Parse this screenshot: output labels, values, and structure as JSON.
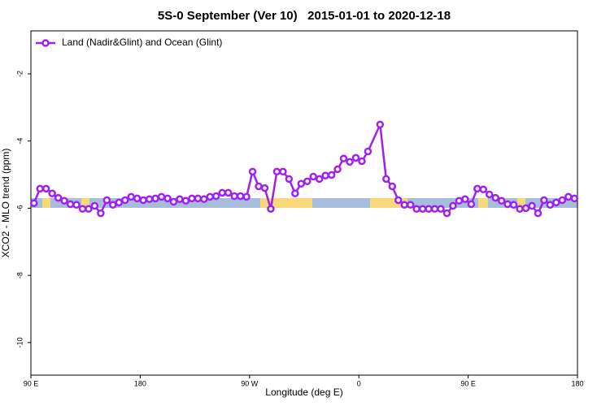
{
  "chart_data": {
    "type": "line",
    "title": "5S-0 September (Ver 10)   2015-01-01 to 2020-12-18",
    "xlabel": "Longitude (deg E)",
    "ylabel": "XCO2 - MLO trend (ppm)",
    "x": [
      92.5,
      97.5,
      102.5,
      107.5,
      112.5,
      117.5,
      122.5,
      127.5,
      132.5,
      137.5,
      142.5,
      147.5,
      152.5,
      157.5,
      162.5,
      167.5,
      172.5,
      177.5,
      182.5,
      187.5,
      192.5,
      197.5,
      202.5,
      207.5,
      212.5,
      217.5,
      222.5,
      227.5,
      232.5,
      237.5,
      242.5,
      247.5,
      252.5,
      257.5,
      262.5,
      267.5,
      272.5,
      277.5,
      282.5,
      287.5,
      292.5,
      297.5,
      302.5,
      307.5,
      312.5,
      317.5,
      322.5,
      327.5,
      332.5,
      337.5,
      342.5,
      347.5,
      352.5,
      357.5,
      362.5,
      367.5,
      377.5,
      382.5,
      387.5,
      392.5,
      397.5,
      402.5,
      407.5,
      412.5,
      417.5,
      422.5,
      427.5,
      432.5,
      437.5,
      442.5,
      447.5,
      452.5,
      457.5,
      462.5,
      467.5,
      472.5,
      477.5,
      482.5,
      487.5,
      492.5,
      497.5,
      502.5,
      507.5,
      512.5,
      517.5,
      522.5,
      527.5,
      532.5,
      537.5
    ],
    "series": [
      {
        "name": "Land (Nadir&Glint) and Ocean (Glint)",
        "color": "#a020f0",
        "values": [
          -5.85,
          -5.42,
          -5.42,
          -5.56,
          -5.69,
          -5.78,
          -5.88,
          -5.9,
          -6.02,
          -6.02,
          -5.93,
          -6.15,
          -5.76,
          -5.9,
          -5.83,
          -5.76,
          -5.66,
          -5.71,
          -5.76,
          -5.73,
          -5.71,
          -5.66,
          -5.71,
          -5.81,
          -5.73,
          -5.78,
          -5.71,
          -5.71,
          -5.73,
          -5.66,
          -5.64,
          -5.54,
          -5.54,
          -5.64,
          -5.64,
          -5.66,
          -4.91,
          -5.35,
          -5.4,
          -6.02,
          -4.91,
          -4.91,
          -5.13,
          -5.56,
          -5.27,
          -5.2,
          -5.06,
          -5.13,
          -5.03,
          -5.01,
          -4.84,
          -4.52,
          -4.62,
          -4.5,
          -4.6,
          -4.31,
          -3.51,
          -5.13,
          -5.35,
          -5.76,
          -5.9,
          -5.9,
          -6.02,
          -6.02,
          -6.02,
          -6.02,
          -6.02,
          -6.15,
          -5.93,
          -5.78,
          -5.73,
          -5.88,
          -5.42,
          -5.44,
          -5.59,
          -5.69,
          -5.78,
          -5.88,
          -5.9,
          -6.02,
          -6,
          -5.93,
          -6.15,
          -5.76,
          -5.9,
          -5.83,
          -5.76,
          -5.66,
          -5.71
        ]
      }
    ],
    "xlim": [
      90,
      540
    ],
    "xticks": [
      {
        "value": 90,
        "label": "90 E"
      },
      180,
      {
        "value": 270,
        "label": "90 W"
      },
      {
        "value": 360,
        "label": "0"
      },
      {
        "value": 450,
        "label": "90 E"
      },
      {
        "value": 540,
        "label": "180"
      }
    ],
    "ylim": [
      -10.97,
      -0.72
    ],
    "yticks": [
      -10,
      -8,
      -6,
      -4,
      -2
    ],
    "legend": "upper left"
  }
}
